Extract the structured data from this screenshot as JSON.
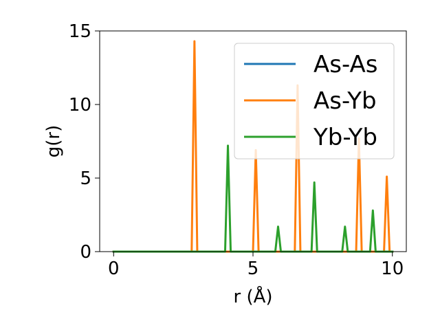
{
  "chart_data": {
    "type": "line",
    "xlabel": "r (Å)",
    "ylabel": "g(r)",
    "xlim": [
      -0.5,
      10.5
    ],
    "ylim": [
      0,
      15
    ],
    "xticks": [
      0,
      5,
      10
    ],
    "yticks": [
      0,
      5,
      10,
      15
    ],
    "grid": false,
    "legend_position": "top-right",
    "series": [
      {
        "name": "As-As",
        "color": "#1f77b4",
        "x": [
          0.0,
          10.0
        ],
        "y": [
          0,
          0
        ]
      },
      {
        "name": "As-Yb",
        "color": "#ff7f0e",
        "x": [
          0.0,
          2.8,
          2.9,
          3.0,
          5.0,
          5.1,
          5.2,
          6.5,
          6.6,
          6.7,
          8.7,
          8.8,
          8.9,
          9.7,
          9.8,
          9.9,
          10.0
        ],
        "y": [
          0,
          0,
          14.3,
          0,
          0,
          6.9,
          0,
          0,
          11.3,
          0,
          0,
          7.7,
          0,
          0,
          5.1,
          0,
          0
        ]
      },
      {
        "name": "Yb-Yb",
        "color": "#2ca02c",
        "x": [
          0.0,
          4.0,
          4.1,
          4.2,
          5.8,
          5.9,
          6.0,
          7.1,
          7.2,
          7.3,
          8.2,
          8.3,
          8.4,
          9.2,
          9.3,
          9.4,
          10.0
        ],
        "y": [
          0,
          0,
          7.2,
          0,
          0,
          1.7,
          0,
          0,
          4.7,
          0,
          0,
          1.7,
          0,
          0,
          2.8,
          0,
          0
        ]
      }
    ]
  }
}
